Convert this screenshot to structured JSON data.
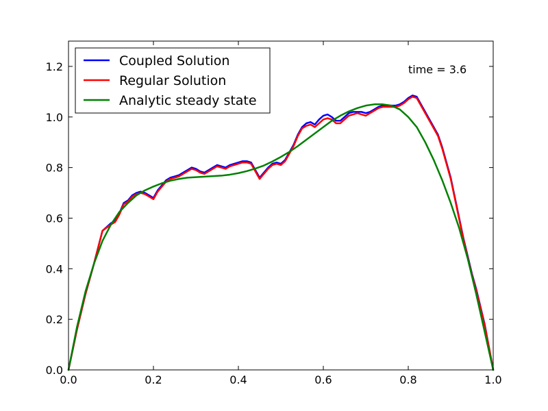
{
  "chart_data": {
    "type": "line",
    "xlim": [
      0.0,
      1.0
    ],
    "ylim": [
      0.0,
      1.3
    ],
    "x_ticks": [
      "0.0",
      "0.2",
      "0.4",
      "0.6",
      "0.8",
      "1.0"
    ],
    "y_ticks": [
      "0.0",
      "0.2",
      "0.4",
      "0.6",
      "0.8",
      "1.0",
      "1.2"
    ],
    "grid": false,
    "legend_position": "top-left",
    "annotation": "time = 3.6",
    "series": [
      {
        "name": "Coupled Solution",
        "color": "#0000ff",
        "x": [
          0,
          0.02,
          0.04,
          0.06,
          0.08,
          0.1,
          0.11,
          0.12,
          0.13,
          0.14,
          0.15,
          0.16,
          0.17,
          0.18,
          0.19,
          0.2,
          0.21,
          0.22,
          0.23,
          0.24,
          0.25,
          0.26,
          0.27,
          0.28,
          0.29,
          0.3,
          0.31,
          0.32,
          0.33,
          0.34,
          0.35,
          0.36,
          0.37,
          0.38,
          0.39,
          0.4,
          0.41,
          0.42,
          0.43,
          0.44,
          0.45,
          0.46,
          0.47,
          0.48,
          0.49,
          0.5,
          0.51,
          0.52,
          0.53,
          0.54,
          0.55,
          0.56,
          0.57,
          0.58,
          0.59,
          0.6,
          0.61,
          0.62,
          0.63,
          0.64,
          0.65,
          0.66,
          0.67,
          0.68,
          0.69,
          0.7,
          0.71,
          0.72,
          0.73,
          0.74,
          0.75,
          0.76,
          0.77,
          0.78,
          0.79,
          0.8,
          0.81,
          0.82,
          0.83,
          0.84,
          0.85,
          0.86,
          0.87,
          0.88,
          0.89,
          0.9,
          0.91,
          0.92,
          0.93,
          0.94,
          0.95,
          0.96,
          0.97,
          0.98,
          0.99,
          1.0
        ],
        "y": [
          0,
          0.16,
          0.3,
          0.42,
          0.55,
          0.58,
          0.59,
          0.62,
          0.66,
          0.67,
          0.69,
          0.7,
          0.705,
          0.7,
          0.69,
          0.68,
          0.71,
          0.73,
          0.75,
          0.76,
          0.765,
          0.77,
          0.78,
          0.79,
          0.8,
          0.795,
          0.785,
          0.78,
          0.79,
          0.8,
          0.81,
          0.805,
          0.8,
          0.81,
          0.815,
          0.82,
          0.825,
          0.825,
          0.82,
          0.79,
          0.76,
          0.78,
          0.8,
          0.815,
          0.82,
          0.815,
          0.83,
          0.86,
          0.89,
          0.93,
          0.96,
          0.975,
          0.98,
          0.97,
          0.99,
          1.005,
          1.01,
          1.0,
          0.985,
          0.985,
          1.0,
          1.015,
          1.02,
          1.02,
          1.02,
          1.015,
          1.02,
          1.03,
          1.04,
          1.045,
          1.045,
          1.045,
          1.045,
          1.05,
          1.06,
          1.075,
          1.085,
          1.08,
          1.05,
          1.02,
          0.99,
          0.96,
          0.93,
          0.88,
          0.82,
          0.76,
          0.68,
          0.6,
          0.52,
          0.45,
          0.38,
          0.32,
          0.25,
          0.18,
          0.09,
          0
        ]
      },
      {
        "name": "Regular Solution",
        "color": "#ff0000",
        "x": [
          0,
          0.02,
          0.04,
          0.06,
          0.08,
          0.1,
          0.11,
          0.12,
          0.13,
          0.14,
          0.15,
          0.16,
          0.17,
          0.18,
          0.19,
          0.2,
          0.21,
          0.22,
          0.23,
          0.24,
          0.25,
          0.26,
          0.27,
          0.28,
          0.29,
          0.3,
          0.31,
          0.32,
          0.33,
          0.34,
          0.35,
          0.36,
          0.37,
          0.38,
          0.39,
          0.4,
          0.41,
          0.42,
          0.43,
          0.44,
          0.45,
          0.46,
          0.47,
          0.48,
          0.49,
          0.5,
          0.51,
          0.52,
          0.53,
          0.54,
          0.55,
          0.56,
          0.57,
          0.58,
          0.59,
          0.6,
          0.61,
          0.62,
          0.63,
          0.64,
          0.65,
          0.66,
          0.67,
          0.68,
          0.69,
          0.7,
          0.71,
          0.72,
          0.73,
          0.74,
          0.75,
          0.76,
          0.77,
          0.78,
          0.79,
          0.8,
          0.81,
          0.82,
          0.83,
          0.84,
          0.85,
          0.86,
          0.87,
          0.88,
          0.89,
          0.9,
          0.91,
          0.92,
          0.93,
          0.94,
          0.95,
          0.96,
          0.97,
          0.98,
          0.99,
          1.0
        ],
        "y": [
          0,
          0.16,
          0.3,
          0.42,
          0.55,
          0.575,
          0.585,
          0.615,
          0.655,
          0.665,
          0.685,
          0.695,
          0.7,
          0.695,
          0.685,
          0.675,
          0.705,
          0.725,
          0.745,
          0.755,
          0.76,
          0.765,
          0.775,
          0.785,
          0.795,
          0.79,
          0.78,
          0.775,
          0.785,
          0.795,
          0.805,
          0.8,
          0.795,
          0.805,
          0.81,
          0.815,
          0.82,
          0.82,
          0.815,
          0.785,
          0.755,
          0.775,
          0.795,
          0.81,
          0.815,
          0.81,
          0.825,
          0.855,
          0.885,
          0.925,
          0.955,
          0.965,
          0.97,
          0.96,
          0.975,
          0.99,
          0.995,
          0.99,
          0.975,
          0.975,
          0.99,
          1.005,
          1.01,
          1.015,
          1.01,
          1.005,
          1.015,
          1.025,
          1.035,
          1.04,
          1.04,
          1.04,
          1.04,
          1.045,
          1.055,
          1.07,
          1.08,
          1.075,
          1.045,
          1.015,
          0.985,
          0.955,
          0.925,
          0.875,
          0.815,
          0.755,
          0.675,
          0.595,
          0.515,
          0.445,
          0.375,
          0.315,
          0.245,
          0.175,
          0.09,
          0
        ]
      },
      {
        "name": "Analytic steady state",
        "color": "#008000",
        "x": [
          0,
          0.02,
          0.04,
          0.06,
          0.08,
          0.1,
          0.12,
          0.14,
          0.16,
          0.18,
          0.2,
          0.22,
          0.24,
          0.26,
          0.28,
          0.3,
          0.32,
          0.34,
          0.36,
          0.38,
          0.4,
          0.42,
          0.44,
          0.46,
          0.48,
          0.5,
          0.52,
          0.54,
          0.56,
          0.58,
          0.6,
          0.62,
          0.64,
          0.66,
          0.68,
          0.7,
          0.72,
          0.74,
          0.76,
          0.78,
          0.8,
          0.82,
          0.84,
          0.86,
          0.88,
          0.9,
          0.92,
          0.94,
          0.96,
          0.98,
          1.0
        ],
        "y": [
          0,
          0.17,
          0.31,
          0.42,
          0.51,
          0.575,
          0.625,
          0.66,
          0.69,
          0.71,
          0.725,
          0.738,
          0.748,
          0.755,
          0.76,
          0.762,
          0.764,
          0.766,
          0.768,
          0.772,
          0.778,
          0.786,
          0.796,
          0.808,
          0.824,
          0.842,
          0.862,
          0.885,
          0.91,
          0.935,
          0.96,
          0.985,
          1.005,
          1.022,
          1.035,
          1.045,
          1.05,
          1.05,
          1.045,
          1.03,
          1.0,
          0.96,
          0.9,
          0.83,
          0.75,
          0.66,
          0.56,
          0.44,
          0.3,
          0.15,
          0
        ]
      }
    ]
  }
}
